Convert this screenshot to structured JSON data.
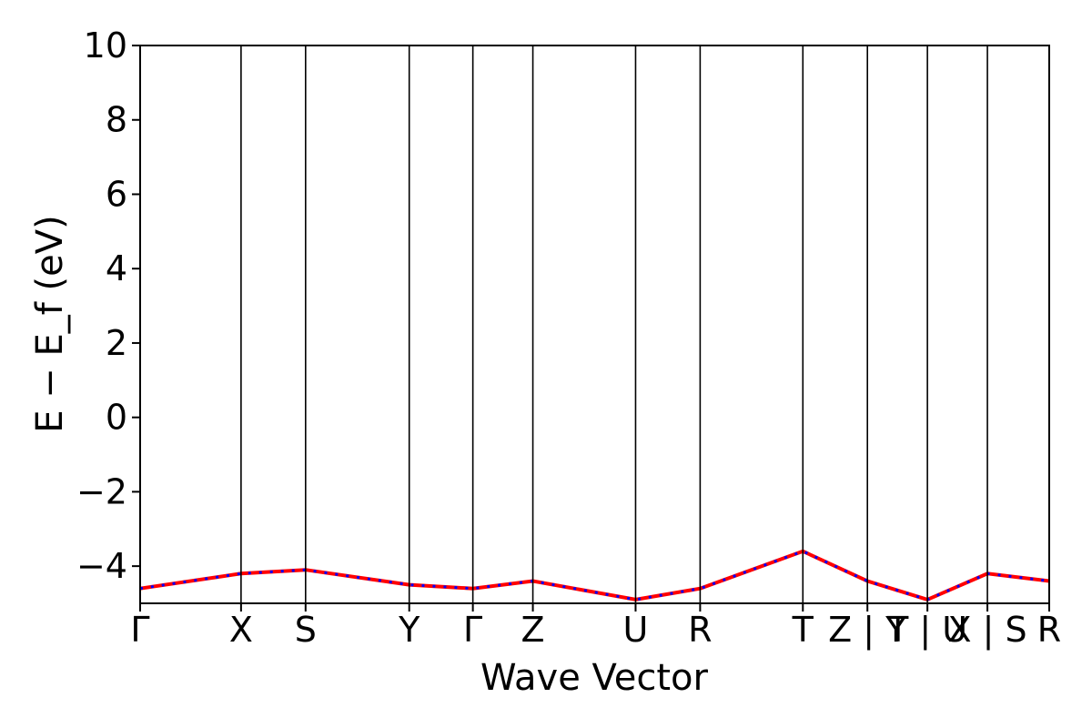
{
  "chart_data": {
    "type": "line",
    "title": "",
    "xlabel": "Wave Vector",
    "ylabel": "E − E_f (eV)",
    "ylim": [
      -5,
      10
    ],
    "ytick_values": [
      -4,
      -2,
      0,
      2,
      4,
      6,
      8,
      10
    ],
    "ytick_labels": [
      "−4",
      "−2",
      "0",
      "2",
      "4",
      "6",
      "8",
      "10"
    ],
    "x_range": [
      0,
      1.0
    ],
    "kpoints": [
      {
        "label": "Γ",
        "x": 0.0
      },
      {
        "label": "X",
        "x": 0.111
      },
      {
        "label": "S",
        "x": 0.182
      },
      {
        "label": "Y",
        "x": 0.296
      },
      {
        "label": "Γ",
        "x": 0.366
      },
      {
        "label": "Z",
        "x": 0.432
      },
      {
        "label": "U",
        "x": 0.545
      },
      {
        "label": "R",
        "x": 0.616
      },
      {
        "label": "T",
        "x": 0.729
      },
      {
        "label": "Z | Y",
        "x": 0.8
      },
      {
        "label": "T | U",
        "x": 0.866
      },
      {
        "label": "X | S",
        "x": 0.932
      },
      {
        "label": "R",
        "x": 1.0
      }
    ],
    "grid": false,
    "legend": false,
    "colors": {
      "band_primary": "#ff0000",
      "band_overlay": "#0000ff"
    },
    "bands": [
      {
        "name": "",
        "values": [
          [
            -4.6,
            -4.2,
            -4.1,
            -4.5,
            -4.6,
            -4.4,
            -4.9,
            -4.6,
            -3.6,
            -4.4,
            -4.9,
            -4.2,
            -4.4
          ]
        ]
      }
    ]
  }
}
